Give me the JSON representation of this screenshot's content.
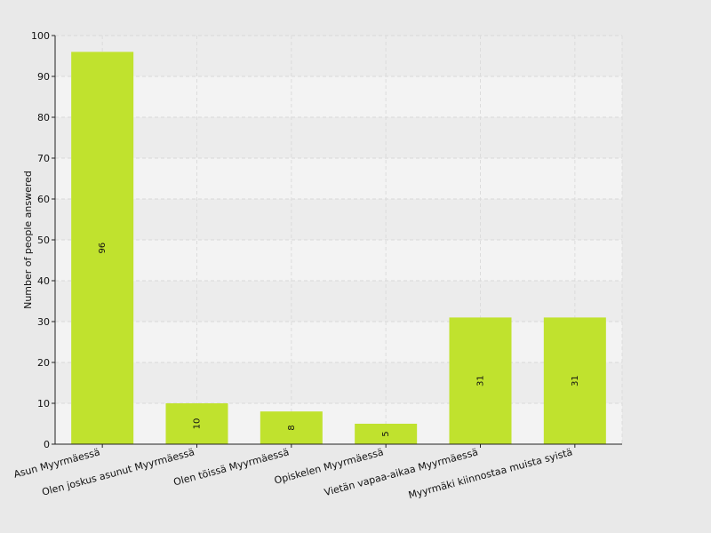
{
  "chart_data": {
    "type": "bar",
    "categories": [
      "Asun Myyrmäessä",
      "Olen joskus asunut Myyrmäessä",
      "Olen töissä Myyrmäessä",
      "Opiskelen Myyrmäessä",
      "Vietän vapaa-aikaa Myyrmäessä",
      "Myyrmäki kiinnostaa muista syistä"
    ],
    "values": [
      96,
      10,
      8,
      5,
      31,
      31
    ],
    "title": "",
    "xlabel": "",
    "ylabel": "Number of people answered",
    "ylim": [
      0,
      100
    ],
    "yticks": [
      0,
      10,
      20,
      30,
      40,
      50,
      60,
      70,
      80,
      90,
      100
    ],
    "grid": true,
    "bar_color": "#c0e22e",
    "plot_band_colors": [
      "#f3f3f3",
      "#ececec"
    ],
    "background_color": "#e9e9e9",
    "data_labels": true
  }
}
